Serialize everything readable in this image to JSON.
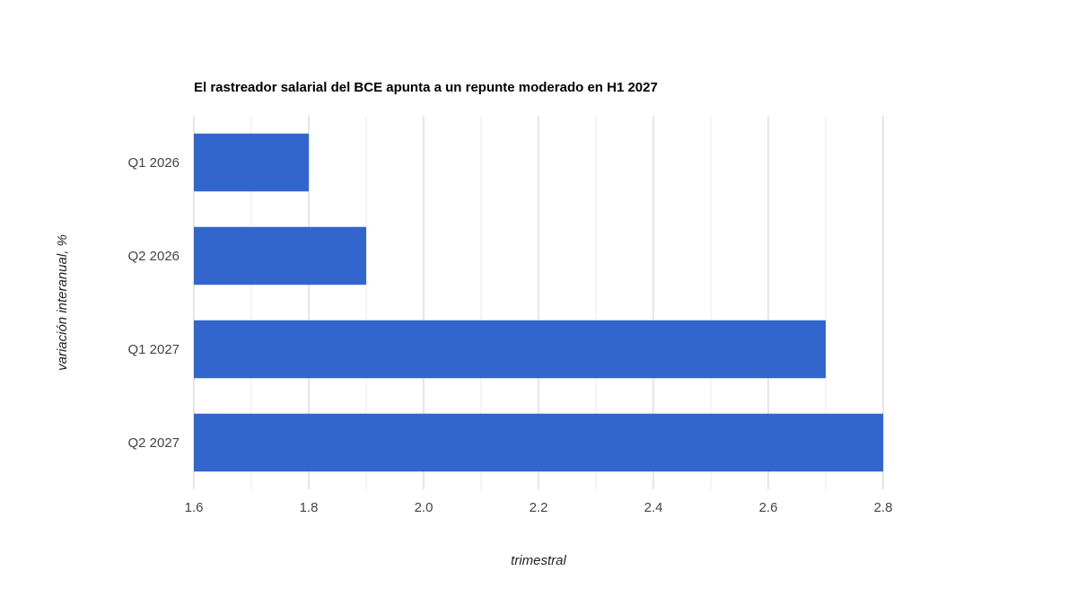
{
  "chart_data": {
    "type": "bar",
    "orientation": "horizontal",
    "title": "El rastreador salarial del BCE apunta a un repunte moderado en H1 2027",
    "xlabel": "trimestral",
    "ylabel": "variación interanual, %",
    "categories": [
      "Q1 2026",
      "Q2 2026",
      "Q1 2027",
      "Q2 2027"
    ],
    "values": [
      1.8,
      1.9,
      2.7,
      2.8
    ],
    "xlim": [
      1.6,
      2.8
    ],
    "x_ticks": [
      "1.6",
      "1.8",
      "2.0",
      "2.2",
      "2.4",
      "2.6",
      "2.8"
    ],
    "grid": true,
    "legend": "none",
    "bar_color": "#3366cc"
  }
}
